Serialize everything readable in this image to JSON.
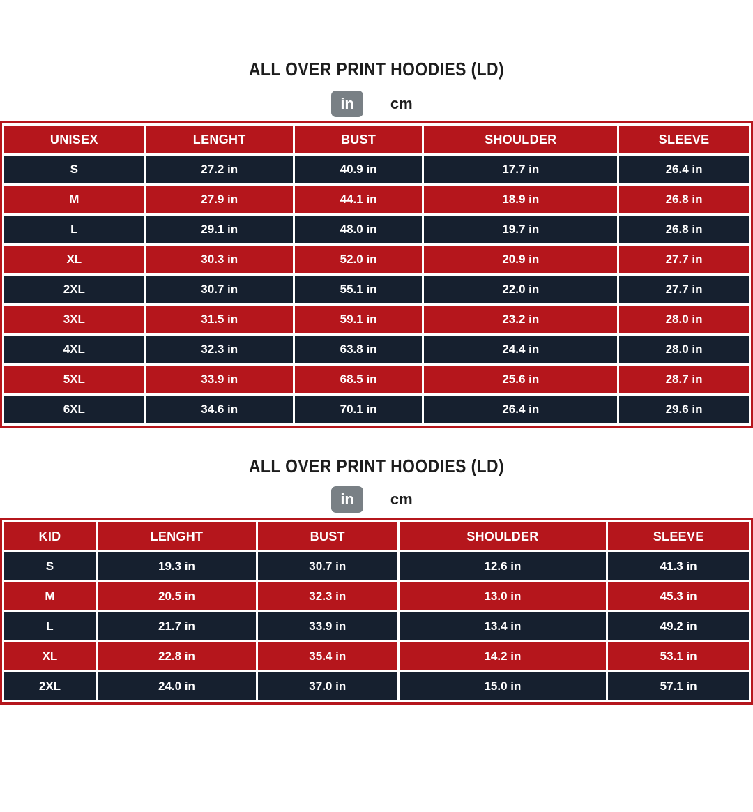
{
  "colors": {
    "row_red": "#b5161c",
    "row_navy": "#16202f",
    "toggle_selected_gray": "#798085",
    "text_on_rows": "#ffffff",
    "title_text": "#1d1d1d"
  },
  "sections": [
    {
      "title": "ALL OVER PRINT HOODIES (LD)",
      "unit_toggle": {
        "options": [
          "in",
          "cm"
        ],
        "selected": "in"
      },
      "table": {
        "columns": [
          "UNISEX",
          "LENGHT",
          "BUST",
          "SHOULDER",
          "SLEEVE"
        ],
        "col_widths": [
          "19%",
          "19.9%",
          "17.3%",
          "26.2%",
          "17.6%"
        ],
        "rows": [
          [
            "S",
            "27.2 in",
            "40.9 in",
            "17.7 in",
            "26.4 in"
          ],
          [
            "M",
            "27.9 in",
            "44.1 in",
            "18.9 in",
            "26.8 in"
          ],
          [
            "L",
            "29.1 in",
            "48.0 in",
            "19.7 in",
            "26.8 in"
          ],
          [
            "XL",
            "30.3 in",
            "52.0 in",
            "20.9 in",
            "27.7 in"
          ],
          [
            "2XL",
            "30.7 in",
            "55.1 in",
            "22.0 in",
            "27.7 in"
          ],
          [
            "3XL",
            "31.5 in",
            "59.1 in",
            "23.2 in",
            "28.0 in"
          ],
          [
            "4XL",
            "32.3 in",
            "63.8 in",
            "24.4 in",
            "28.0 in"
          ],
          [
            "5XL",
            "33.9 in",
            "68.5 in",
            "25.6 in",
            "28.7 in"
          ],
          [
            "6XL",
            "34.6 in",
            "70.1 in",
            "26.4 in",
            "29.6 in"
          ]
        ]
      }
    },
    {
      "title": "ALL OVER PRINT HOODIES (LD)",
      "unit_toggle": {
        "options": [
          "in",
          "cm"
        ],
        "selected": "in"
      },
      "table": {
        "columns": [
          "KID",
          "LENGHT",
          "BUST",
          "SHOULDER",
          "SLEEVE"
        ],
        "col_widths": [
          "12.4%",
          "21.5%",
          "18.9%",
          "28.1%",
          "19.1%"
        ],
        "rows": [
          [
            "S",
            "19.3 in",
            "30.7 in",
            "12.6 in",
            "41.3 in"
          ],
          [
            "M",
            "20.5 in",
            "32.3 in",
            "13.0 in",
            "45.3 in"
          ],
          [
            "L",
            "21.7 in",
            "33.9 in",
            "13.4 in",
            "49.2 in"
          ],
          [
            "XL",
            "22.8 in",
            "35.4 in",
            "14.2 in",
            "53.1 in"
          ],
          [
            "2XL",
            "24.0 in",
            "37.0 in",
            "15.0 in",
            "57.1 in"
          ]
        ]
      }
    }
  ]
}
